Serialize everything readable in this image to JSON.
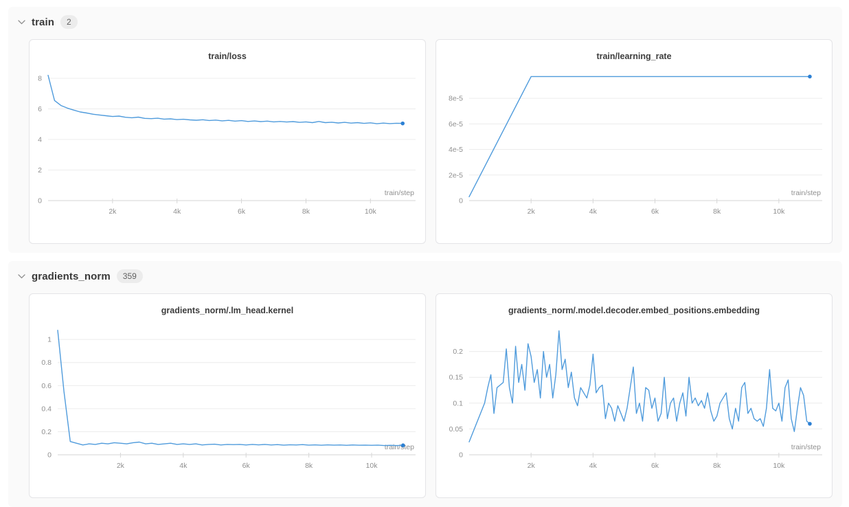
{
  "sections": [
    {
      "label": "train",
      "count": "2"
    },
    {
      "label": "gradients_norm",
      "count": "359"
    }
  ],
  "style": {
    "line_color": "#4f9bdc",
    "dot_color": "#2c80d4",
    "grid_color": "#ececec",
    "axis_color": "#d6d6d6",
    "tick_label_color": "#8f8f8f"
  },
  "chart_data": [
    {
      "type": "line",
      "title": "train/loss",
      "xlabel": "train/step",
      "x_start": 0,
      "x_step": 200,
      "xlim": [
        0,
        11400
      ],
      "ylim": [
        0,
        8.45
      ],
      "x_ticks": [
        2000,
        4000,
        6000,
        8000,
        10000
      ],
      "x_tick_labels": [
        "2k",
        "4k",
        "6k",
        "8k",
        "10k"
      ],
      "y_ticks": [
        0,
        2,
        4,
        6,
        8
      ],
      "y_tick_labels": [
        "0",
        "2",
        "4",
        "6",
        "8"
      ],
      "values": [
        8.2,
        6.55,
        6.22,
        6.05,
        5.92,
        5.8,
        5.73,
        5.65,
        5.6,
        5.55,
        5.5,
        5.53,
        5.45,
        5.42,
        5.46,
        5.38,
        5.36,
        5.39,
        5.33,
        5.35,
        5.3,
        5.32,
        5.28,
        5.26,
        5.29,
        5.24,
        5.27,
        5.22,
        5.25,
        5.2,
        5.23,
        5.18,
        5.21,
        5.17,
        5.2,
        5.15,
        5.18,
        5.14,
        5.17,
        5.12,
        5.15,
        5.1,
        5.18,
        5.1,
        5.13,
        5.08,
        5.12,
        5.07,
        5.1,
        5.05,
        5.09,
        5.03,
        5.07,
        5.04,
        5.06,
        5.05
      ]
    },
    {
      "type": "line",
      "title": "train/learning_rate",
      "xlabel": "train/step",
      "x": [
        0,
        2000,
        11000
      ],
      "xlim": [
        0,
        11400
      ],
      "ylim": [
        0,
        0.000101
      ],
      "x_ticks": [
        2000,
        4000,
        6000,
        8000,
        10000
      ],
      "x_tick_labels": [
        "2k",
        "4k",
        "6k",
        "8k",
        "10k"
      ],
      "y_ticks": [
        0,
        2e-05,
        4e-05,
        6e-05,
        8e-05
      ],
      "y_tick_labels": [
        "0",
        "2e-5",
        "4e-5",
        "6e-5",
        "8e-5"
      ],
      "values": [
        3e-06,
        9.7e-05,
        9.7e-05
      ]
    },
    {
      "type": "line",
      "title": "gradients_norm/.lm_head.kernel",
      "xlabel": "train/step",
      "x_start": 0,
      "x_step": 200,
      "xlim": [
        0,
        11400
      ],
      "ylim": [
        0,
        1.12
      ],
      "x_ticks": [
        2000,
        4000,
        6000,
        8000,
        10000
      ],
      "x_tick_labels": [
        "2k",
        "4k",
        "6k",
        "8k",
        "10k"
      ],
      "y_ticks": [
        0,
        0.2,
        0.4,
        0.6,
        0.8,
        1
      ],
      "y_tick_labels": [
        "0",
        "0.2",
        "0.4",
        "0.6",
        "0.8",
        "1"
      ],
      "values": [
        1.08,
        0.55,
        0.115,
        0.1,
        0.085,
        0.095,
        0.09,
        0.1,
        0.095,
        0.105,
        0.1,
        0.095,
        0.105,
        0.11,
        0.095,
        0.1,
        0.09,
        0.095,
        0.1,
        0.09,
        0.095,
        0.09,
        0.095,
        0.085,
        0.09,
        0.092,
        0.085,
        0.09,
        0.088,
        0.09,
        0.085,
        0.09,
        0.086,
        0.09,
        0.085,
        0.088,
        0.084,
        0.087,
        0.085,
        0.088,
        0.084,
        0.086,
        0.083,
        0.086,
        0.084,
        0.085,
        0.082,
        0.085,
        0.083,
        0.084,
        0.082,
        0.084,
        0.08,
        0.082,
        0.08,
        0.082
      ]
    },
    {
      "type": "line",
      "title": "gradients_norm/.model.decoder.embed_positions.embedding",
      "xlabel": "train/step",
      "x_start": 0,
      "x_step": 100,
      "xlim": [
        0,
        11400
      ],
      "ylim": [
        0,
        0.25
      ],
      "x_ticks": [
        2000,
        4000,
        6000,
        8000,
        10000
      ],
      "x_tick_labels": [
        "2k",
        "4k",
        "6k",
        "8k",
        "10k"
      ],
      "y_ticks": [
        0,
        0.05,
        0.1,
        0.15,
        0.2
      ],
      "y_tick_labels": [
        "0",
        "0.05",
        "0.1",
        "0.15",
        "0.2"
      ],
      "values": [
        0.025,
        0.04,
        0.055,
        0.07,
        0.085,
        0.1,
        0.13,
        0.155,
        0.08,
        0.13,
        0.135,
        0.14,
        0.205,
        0.13,
        0.1,
        0.21,
        0.14,
        0.175,
        0.125,
        0.215,
        0.19,
        0.14,
        0.165,
        0.11,
        0.2,
        0.15,
        0.175,
        0.11,
        0.155,
        0.24,
        0.165,
        0.185,
        0.13,
        0.16,
        0.11,
        0.095,
        0.13,
        0.12,
        0.11,
        0.135,
        0.195,
        0.12,
        0.13,
        0.135,
        0.07,
        0.1,
        0.09,
        0.065,
        0.095,
        0.08,
        0.065,
        0.09,
        0.13,
        0.17,
        0.08,
        0.1,
        0.065,
        0.13,
        0.125,
        0.09,
        0.11,
        0.065,
        0.08,
        0.15,
        0.07,
        0.1,
        0.11,
        0.065,
        0.1,
        0.12,
        0.075,
        0.15,
        0.1,
        0.11,
        0.095,
        0.105,
        0.09,
        0.12,
        0.085,
        0.065,
        0.075,
        0.1,
        0.11,
        0.12,
        0.07,
        0.05,
        0.09,
        0.065,
        0.13,
        0.14,
        0.08,
        0.09,
        0.07,
        0.065,
        0.07,
        0.055,
        0.09,
        0.165,
        0.09,
        0.085,
        0.1,
        0.065,
        0.13,
        0.145,
        0.07,
        0.045,
        0.09,
        0.13,
        0.115,
        0.065,
        0.06
      ]
    }
  ]
}
